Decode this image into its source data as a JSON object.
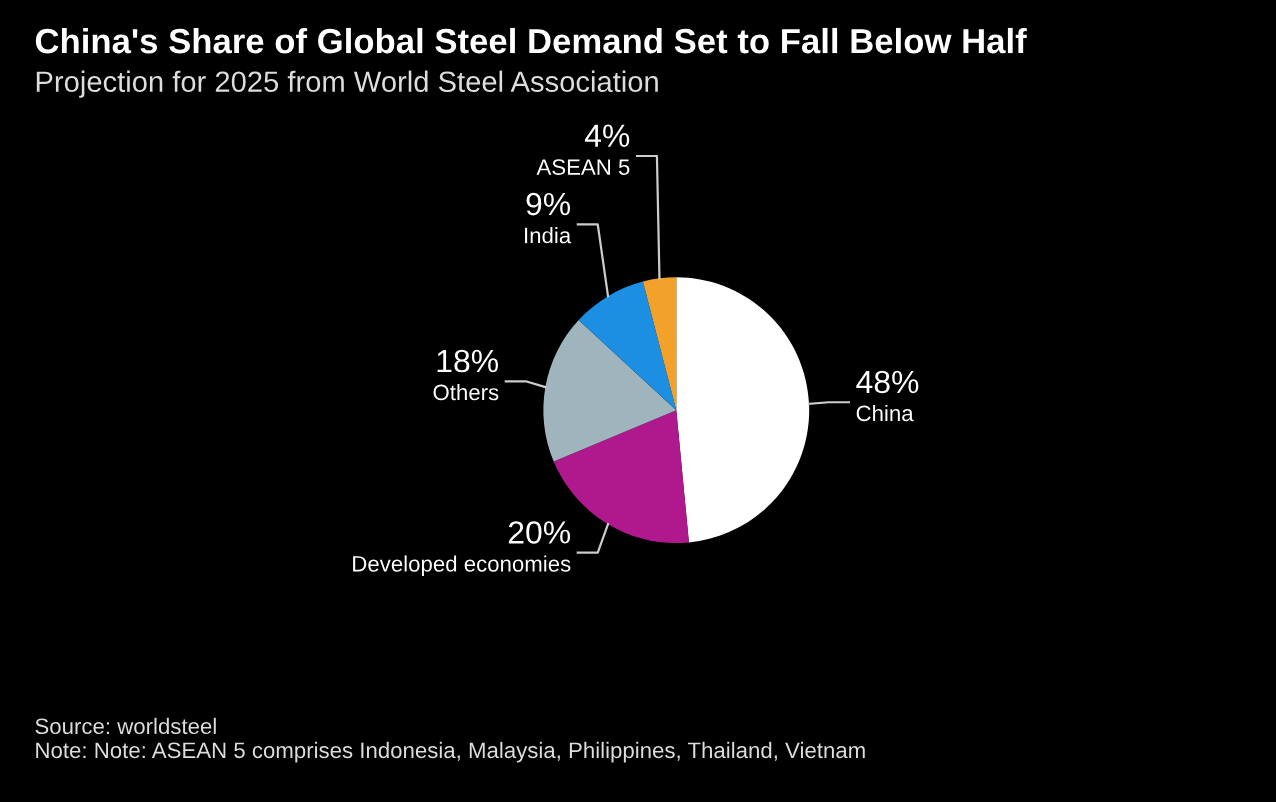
{
  "chart_data": {
    "type": "pie",
    "title": "China's Share of Global Steel Demand Set to Fall Below Half",
    "subtitle": "Projection for 2025 from World Steel Association",
    "categories": [
      "China",
      "Developed economies",
      "Others",
      "India",
      "ASEAN 5"
    ],
    "values": [
      48,
      20,
      18,
      9,
      4
    ],
    "colors": [
      "#ffffff",
      "#b0198e",
      "#9fb4bd",
      "#1c8fe3",
      "#f2a22a"
    ],
    "value_labels": [
      "48%",
      "20%",
      "18%",
      "9%",
      "4%"
    ],
    "annotations": [
      "Source: worldsteel",
      "Note: Note: ASEAN 5 comprises Indonesia, Malaysia, Philippines, Thailand, Vietnam"
    ]
  }
}
